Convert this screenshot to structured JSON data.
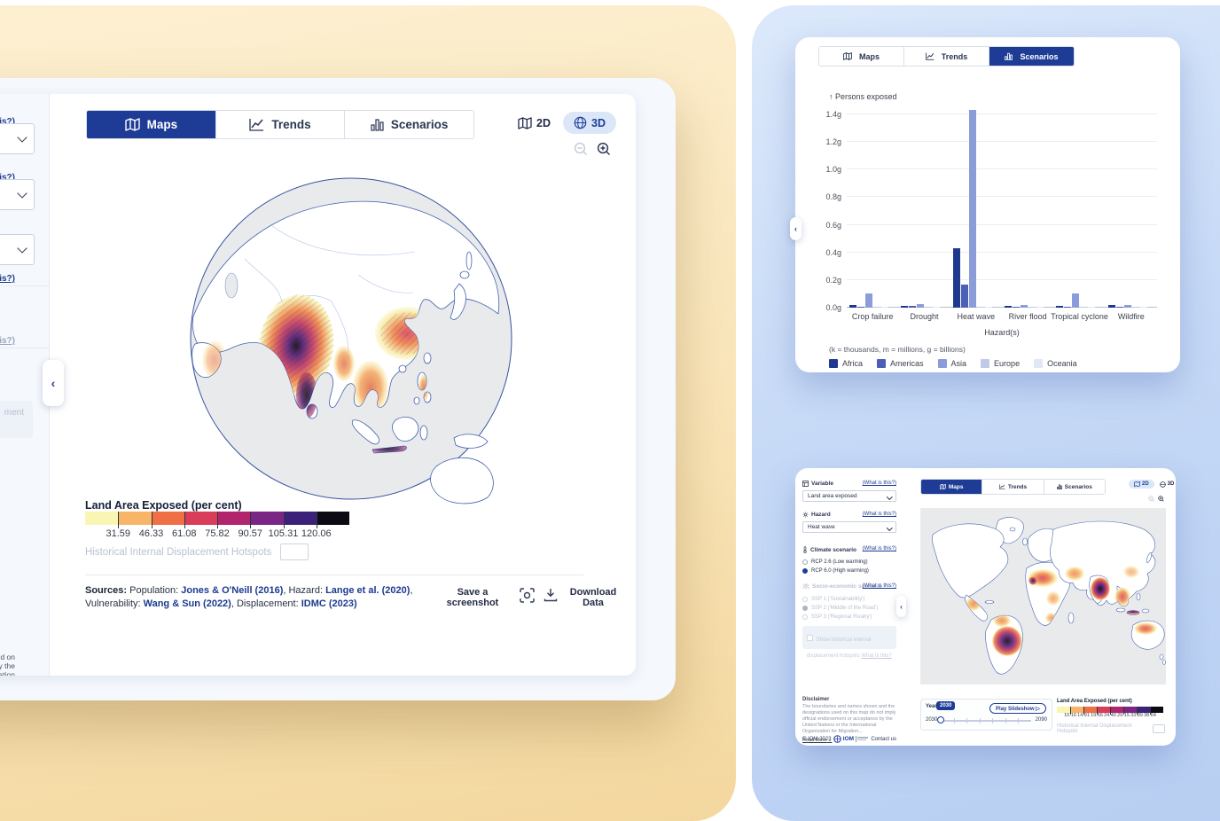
{
  "brand": {
    "navy": "#1e3c96",
    "link_blue": "#1d3b8f",
    "pill_bg": "#dbe7f8"
  },
  "main_panel": {
    "tabs": [
      {
        "label": "Maps",
        "active": true
      },
      {
        "label": "Trends",
        "active": false
      },
      {
        "label": "Scenarios",
        "active": false
      }
    ],
    "view_toggle": {
      "two_d": "2D",
      "three_d": "3D",
      "active": "3D"
    },
    "legend": {
      "title": "Land Area Exposed (per cent)",
      "tick_labels": [
        "31.59",
        "46.33",
        "61.08",
        "75.82",
        "90.57",
        "105.31",
        "120.06"
      ],
      "colors": [
        "#f9f6b4",
        "#f8b467",
        "#ef7044",
        "#d83d5a",
        "#b1256c",
        "#7a2684",
        "#3b2278",
        "#0c0b13"
      ]
    },
    "hotspots_label": "Historical Internal Displacement Hotspots",
    "sources": {
      "prefix": "Sources:",
      "items": [
        {
          "label": "Population:",
          "link": "Jones & O'Neill (2016)"
        },
        {
          "label": "Hazard:",
          "link": "Lange et al. (2020)"
        },
        {
          "label": "Vulnerability:",
          "link": "Wang & Sun (2022)"
        },
        {
          "label": "Displacement:",
          "link": "IDMC (2023)"
        }
      ]
    },
    "save_screenshot_label": "Save a screenshot",
    "download_data_label": "Download Data",
    "clipped_sidebar": {
      "what_link_fragment": "t is this?)",
      "muted_fragment": "ment",
      "disclaimer_fragments": [
        "s used on",
        "nce by the",
        "igration"
      ]
    }
  },
  "chart_data": {
    "type": "bar",
    "title": "",
    "ylabel": "Persons exposed",
    "ylabel_display": "↑ Persons exposed",
    "xlabel": "Hazard(s)",
    "categories": [
      "Crop failure",
      "Drought",
      "Heat wave",
      "River flood",
      "Tropical cyclone",
      "Wildfire"
    ],
    "series": [
      {
        "name": "Africa",
        "color": "#1e3a8f",
        "values": [
          0.02,
          0.015,
          0.43,
          0.01,
          0.01,
          0.018
        ]
      },
      {
        "name": "Americas",
        "color": "#4a5fb5",
        "values": [
          0.007,
          0.012,
          0.17,
          0.004,
          0.005,
          0.008
        ]
      },
      {
        "name": "Asia",
        "color": "#8b9cd9",
        "values": [
          0.1,
          0.026,
          1.43,
          0.018,
          0.105,
          0.022
        ]
      },
      {
        "name": "Europe",
        "color": "#bfc9ea",
        "values": [
          0.004,
          0.006,
          0.006,
          0.004,
          0.002,
          0.005
        ]
      },
      {
        "name": "Oceania",
        "color": "#e2e7f6",
        "values": [
          0.001,
          0.001,
          0.002,
          0.001,
          0.001,
          0.001
        ]
      }
    ],
    "ylim": [
      0,
      1.4
    ],
    "ytick_labels": [
      "0.0g",
      "0.2g",
      "0.4g",
      "0.6g",
      "0.8g",
      "1.0g",
      "1.2g",
      "1.4g"
    ],
    "units_note": "(k = thousands, m = millions, g = billions)",
    "legend_position": "bottom",
    "grid": true
  },
  "scenarios_panel": {
    "tabs": [
      {
        "label": "Maps",
        "active": false
      },
      {
        "label": "Trends",
        "active": false
      },
      {
        "label": "Scenarios",
        "active": true
      }
    ]
  },
  "mini_panel": {
    "tabs": [
      {
        "label": "Maps",
        "active": true
      },
      {
        "label": "Trends",
        "active": false
      },
      {
        "label": "Scenarios",
        "active": false
      }
    ],
    "view_toggle": {
      "two_d": "2D",
      "three_d": "3D",
      "active": "2D"
    },
    "sidebar": {
      "variable": {
        "label": "Variable",
        "what": "(What is this?)",
        "value": "Land area exposed"
      },
      "hazard": {
        "label": "Hazard",
        "what": "(What is this?)",
        "value": "Heat wave"
      },
      "climate": {
        "label": "Climate scenario",
        "what": "(What is this?)",
        "options": [
          {
            "label": "RCP 2.6 (Low warming)",
            "selected": false
          },
          {
            "label": "RCP 6.0 (High warming)",
            "selected": true
          }
        ]
      },
      "socio": {
        "label": "Socio-economic scenario",
        "what": "(What is this?)",
        "options": [
          {
            "label": "SSP 1 ('Sustainability')",
            "selected": false
          },
          {
            "label": "SSP 2 ('Middle of the Road')",
            "selected": true
          },
          {
            "label": "SSP 3 ('Regional Rivalry')",
            "selected": false
          }
        ]
      },
      "hotspots_toggle": {
        "label": "Show historical internal displacement hotspots",
        "what": "What is this?"
      },
      "disclaimer_title": "Disclaimer",
      "disclaimer_text": "The boundaries and names shown and the designations used on this map do not imply official endorsement or acceptance by the United Nations or the International Organization for Migration...",
      "read_more": "Read More",
      "copyright": "© IOM 2023",
      "logo_text": "IOM",
      "contact": "Contact us"
    },
    "timeline": {
      "label": "Year",
      "tooltip": "2030",
      "min": "2030",
      "max": "2090",
      "play": "Play Slideshow"
    },
    "legend": {
      "title": "Land Area Exposed (per cent)",
      "tick_labels": [
        "10.16",
        "14.91",
        "19.66",
        "24.40",
        "29.15",
        "33.89",
        "38.64"
      ],
      "colors": [
        "#f9f6b4",
        "#f8b467",
        "#ef7044",
        "#d83d5a",
        "#b1256c",
        "#7a2684",
        "#3b2278",
        "#0c0b13"
      ],
      "hotspots_label": "Historical Internal Displacement Hotspots"
    }
  }
}
